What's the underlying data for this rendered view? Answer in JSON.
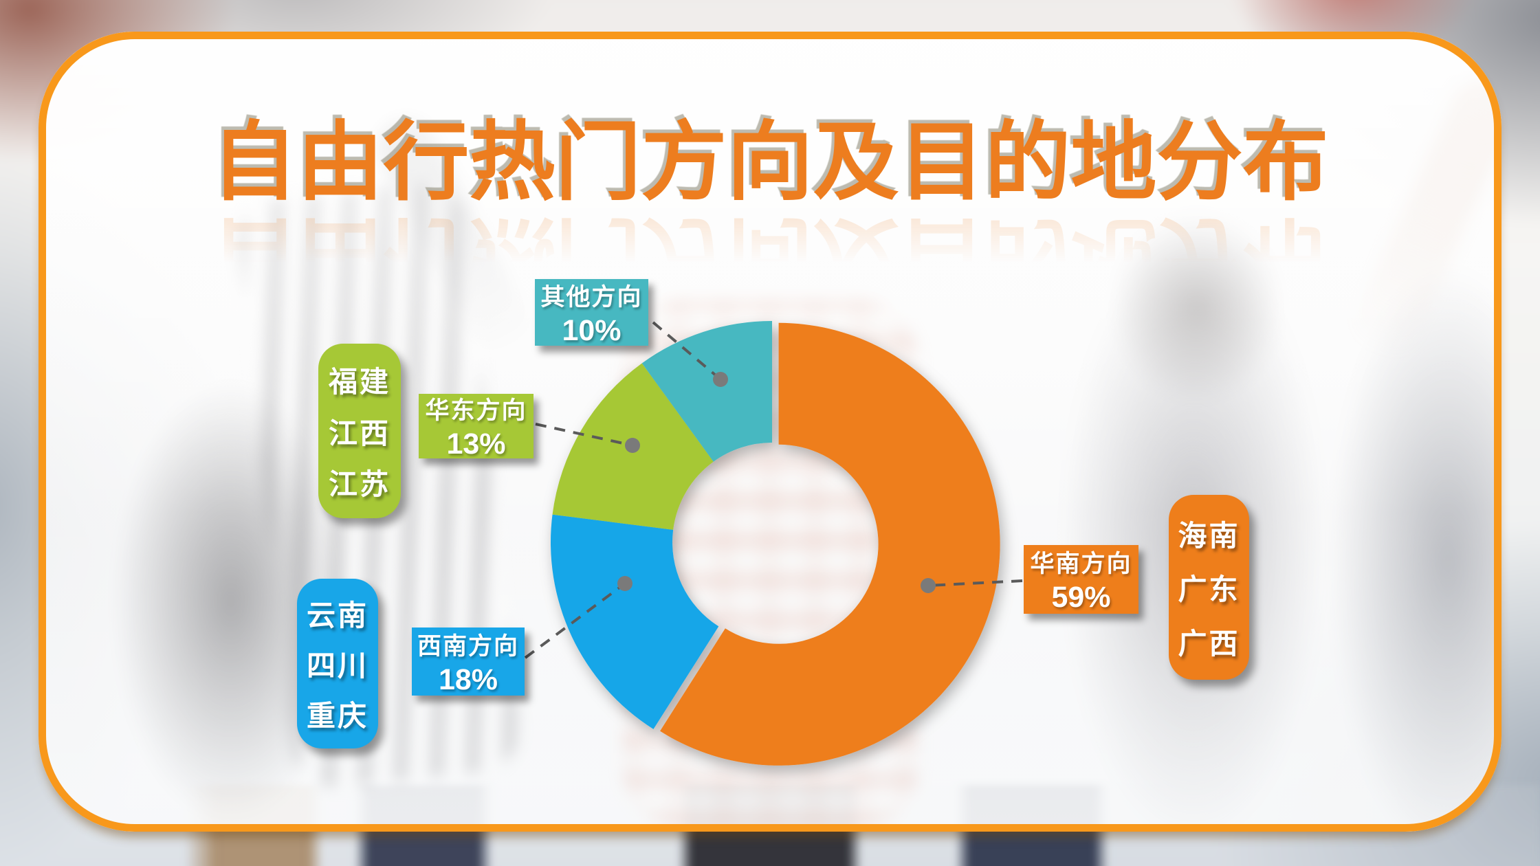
{
  "slide": {
    "title": "自由行热门方向及目的地分布"
  },
  "colors": {
    "frame_border": "#F8981B",
    "title": "#ED7D1F",
    "leader_line": "#5A5A5A",
    "leader_dot": "#7A7A7A",
    "label_text": "#FFFFFF"
  },
  "chart_data": {
    "type": "pie",
    "subtype": "donut",
    "title": "自由行热门方向及目的地分布",
    "unit": "percent",
    "start_angle_deg": 0,
    "direction": "clockwise",
    "hole_ratio": 0.45,
    "total": 100,
    "legend_position": "callouts",
    "series": [
      {
        "name": "华南方向",
        "value": 59,
        "percent_label": "59%",
        "color": "#EE7E1B",
        "destinations": [
          "海南",
          "广东",
          "广西"
        ]
      },
      {
        "name": "西南方向",
        "value": 18,
        "percent_label": "18%",
        "color": "#18A6E8",
        "destinations": [
          "云南",
          "四川",
          "重庆"
        ]
      },
      {
        "name": "华东方向",
        "value": 13,
        "percent_label": "13%",
        "color": "#A6C836",
        "destinations": [
          "福建",
          "江西",
          "江苏"
        ]
      },
      {
        "name": "其他方向",
        "value": 10,
        "percent_label": "10%",
        "color": "#47B8C1",
        "destinations": []
      }
    ]
  }
}
